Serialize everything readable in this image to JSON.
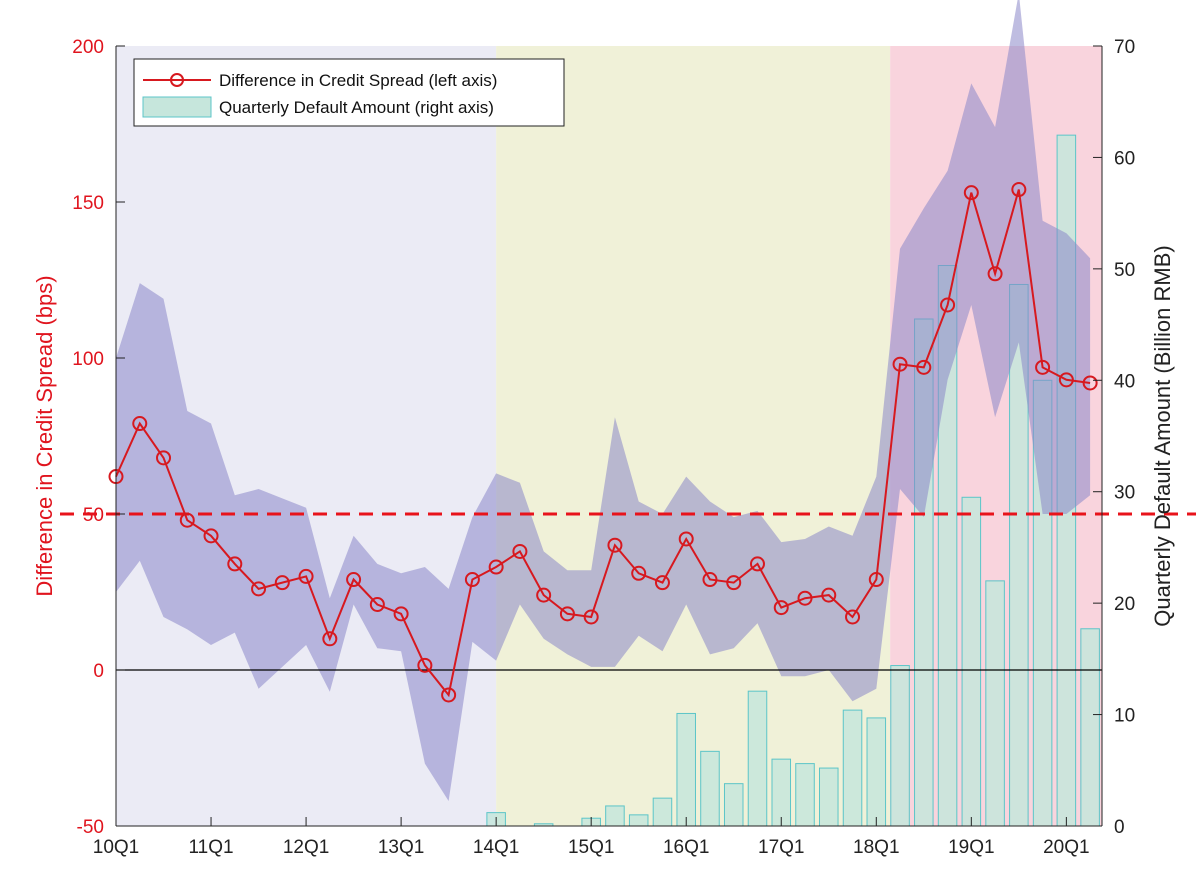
{
  "chart_data": {
    "type": "line",
    "title": "",
    "xlabel": "",
    "ylabel_left": "Difference in Credit Spread (bps)",
    "ylabel_right": "Quarterly Default Amount (Billion RMB)",
    "x_tick_labels": [
      "10Q1",
      "11Q1",
      "12Q1",
      "13Q1",
      "14Q1",
      "15Q1",
      "16Q1",
      "17Q1",
      "18Q1",
      "19Q1",
      "20Q1"
    ],
    "ylim_left": [
      -50,
      200
    ],
    "yticks_left": [
      -50,
      0,
      50,
      100,
      150,
      200
    ],
    "ylim_right": [
      0,
      70
    ],
    "yticks_right": [
      0,
      10,
      20,
      30,
      40,
      50,
      60,
      70
    ],
    "legend": {
      "position": "top-left",
      "entries": [
        "Difference in Credit Spread (left axis)",
        "Quarterly Default Amount (right axis)"
      ]
    },
    "quarters": [
      "10Q1",
      "10Q2",
      "10Q3",
      "10Q4",
      "11Q1",
      "11Q2",
      "11Q3",
      "11Q4",
      "12Q1",
      "12Q2",
      "12Q3",
      "12Q4",
      "13Q1",
      "13Q2",
      "13Q3",
      "13Q4",
      "14Q1",
      "14Q2",
      "14Q3",
      "14Q4",
      "15Q1",
      "15Q2",
      "15Q3",
      "15Q4",
      "16Q1",
      "16Q2",
      "16Q3",
      "16Q4",
      "17Q1",
      "17Q2",
      "17Q3",
      "17Q4",
      "18Q1",
      "18Q2",
      "18Q3",
      "18Q4",
      "19Q1",
      "19Q2",
      "19Q3",
      "19Q4",
      "20Q1",
      "20Q2"
    ],
    "shaded_periods": [
      {
        "from": "10Q1",
        "to": "14Q1",
        "color": "#ebebf5"
      },
      {
        "from": "14Q1",
        "to": "18Q2",
        "color": "#f0f1d8"
      },
      {
        "from": "18Q2",
        "to": "20Q2",
        "color": "#f9d4dd"
      }
    ],
    "reference_lines": [
      {
        "axis": "left",
        "value": 0,
        "style": "solid",
        "color": "#000000"
      },
      {
        "axis": "left",
        "value": 50,
        "style": "dashed",
        "color": "#e8131b"
      }
    ],
    "series": [
      {
        "name": "Difference in Credit Spread (left axis)",
        "axis": "left",
        "color": "#d7191f",
        "marker": "open-circle",
        "values": [
          62,
          79,
          68,
          48,
          43,
          34,
          26,
          28,
          30,
          10,
          29,
          21,
          18,
          1.5,
          -8,
          29,
          33,
          38,
          24,
          18,
          17,
          40,
          31,
          28,
          42,
          29,
          28,
          34,
          20,
          23,
          24,
          17,
          29,
          98,
          97,
          117,
          153,
          127,
          154,
          97,
          93,
          92
        ]
      },
      {
        "name": "band",
        "axis": "left",
        "color": "#8b87c8",
        "upper": [
          100,
          124,
          119,
          83,
          79,
          56,
          58,
          55,
          52,
          23,
          43,
          34,
          31,
          33,
          26,
          49,
          63,
          60,
          38,
          32,
          32,
          81,
          54,
          50,
          62,
          54,
          49,
          51,
          41,
          42,
          46,
          43,
          62,
          135,
          148,
          160,
          188,
          174,
          217,
          144,
          140,
          132
        ],
        "lower": [
          25,
          35,
          17,
          13,
          8,
          12,
          -6,
          1,
          8,
          -7,
          21,
          7,
          6,
          -30,
          -42,
          9,
          3,
          21,
          10,
          5,
          1,
          1,
          11,
          6,
          21,
          5,
          7,
          15,
          -2,
          -2,
          0,
          -10,
          -6,
          58,
          49,
          93,
          117,
          81,
          105,
          50,
          50,
          56
        ]
      },
      {
        "name": "Quarterly Default Amount (right axis)",
        "axis": "right",
        "type": "bar",
        "color": "#c6e6dc",
        "edge_color": "#5cc5c8",
        "values": [
          0,
          0,
          0,
          0,
          0,
          0,
          0,
          0,
          0,
          0,
          0,
          0,
          0,
          0,
          0,
          0,
          1.2,
          0,
          0.2,
          0,
          0.7,
          1.8,
          1.0,
          2.5,
          10.1,
          6.7,
          3.8,
          12.1,
          6.0,
          5.6,
          5.2,
          10.4,
          9.7,
          14.4,
          45.5,
          50.3,
          29.5,
          22.0,
          48.6,
          40.0,
          62.0,
          17.7
        ]
      }
    ]
  }
}
